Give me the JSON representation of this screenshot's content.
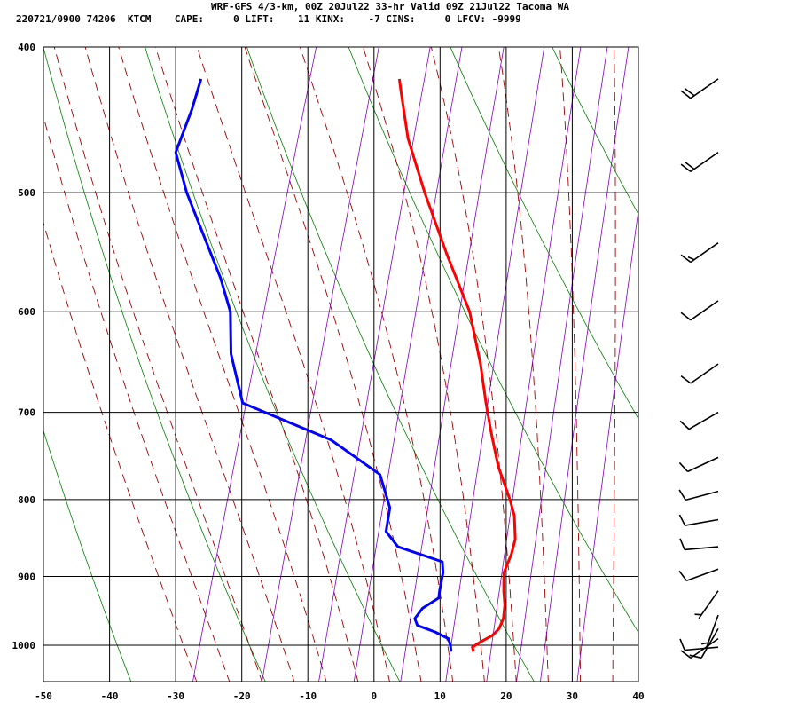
{
  "header": {
    "title": "WRF-GFS 4/3-km, 00Z 20Jul22 33-hr Valid 09Z 21Jul22 Tacoma WA",
    "station": "220721/0900 74206  KTCM",
    "stats": [
      {
        "label": "CAPE:",
        "value": "0"
      },
      {
        "label": "LIFT:",
        "value": "11"
      },
      {
        "label": "KINX:",
        "value": "-7"
      },
      {
        "label": "CINS:",
        "value": "0"
      },
      {
        "label": "LFCV:",
        "value": "-9999"
      }
    ]
  },
  "colors": {
    "temperature": "#ff0000",
    "dewpoint": "#0000ff",
    "dry_adiabat": "#008000",
    "moist_adiabat": "#a00000",
    "mixing_ratio": "#8000c0",
    "grid": "#000000"
  },
  "chart_data": {
    "type": "line",
    "subtype": "skew-T log-P sounding",
    "x_axis": {
      "ticks": [
        "-50",
        "-40",
        "-30",
        "-20",
        "-10",
        "0",
        "10",
        "20",
        "30",
        "40"
      ],
      "range": [
        -50,
        40
      ]
    },
    "y_axis": {
      "ticks": [
        "400",
        "500",
        "600",
        "700",
        "800",
        "900",
        "1000"
      ],
      "range": [
        1040,
        400
      ],
      "scale": "log"
    },
    "grid": true,
    "series": [
      {
        "key": "temperature",
        "points": [
          [
            1010,
            14.2
          ],
          [
            1003,
            13.8
          ],
          [
            995,
            14.8
          ],
          [
            985,
            16.3
          ],
          [
            975,
            17.0
          ],
          [
            960,
            17.2
          ],
          [
            940,
            16.8
          ],
          [
            920,
            16.0
          ],
          [
            895,
            15.2
          ],
          [
            870,
            15.5
          ],
          [
            850,
            15.4
          ],
          [
            820,
            14.2
          ],
          [
            800,
            12.8
          ],
          [
            760,
            9.5
          ],
          [
            720,
            6.8
          ],
          [
            690,
            4.8
          ],
          [
            650,
            2.2
          ],
          [
            600,
            -1.8
          ],
          [
            550,
            -7.8
          ],
          [
            500,
            -14.0
          ],
          [
            460,
            -19.0
          ],
          [
            430,
            -22.0
          ],
          [
            420,
            -23.0
          ]
        ]
      },
      {
        "key": "dewpoint",
        "points": [
          [
            1010,
            10.8
          ],
          [
            1000,
            10.4
          ],
          [
            990,
            9.8
          ],
          [
            980,
            7.5
          ],
          [
            970,
            4.5
          ],
          [
            960,
            3.8
          ],
          [
            945,
            4.5
          ],
          [
            930,
            6.5
          ],
          [
            920,
            6.3
          ],
          [
            895,
            6.0
          ],
          [
            880,
            5.4
          ],
          [
            860,
            -2.0
          ],
          [
            840,
            -4.5
          ],
          [
            810,
            -5.0
          ],
          [
            770,
            -8.0
          ],
          [
            730,
            -17.0
          ],
          [
            690,
            -32.0
          ],
          [
            640,
            -36.0
          ],
          [
            600,
            -38.0
          ],
          [
            570,
            -41.0
          ],
          [
            500,
            -50.0
          ],
          [
            470,
            -53.5
          ],
          [
            440,
            -53.0
          ],
          [
            420,
            -53.0
          ]
        ]
      }
    ],
    "wind_barbs": [
      {
        "p": 420,
        "dir": 235,
        "spd": 20
      },
      {
        "p": 470,
        "dir": 235,
        "spd": 20
      },
      {
        "p": 540,
        "dir": 235,
        "spd": 15
      },
      {
        "p": 590,
        "dir": 235,
        "spd": 10
      },
      {
        "p": 650,
        "dir": 235,
        "spd": 10
      },
      {
        "p": 700,
        "dir": 240,
        "spd": 10
      },
      {
        "p": 750,
        "dir": 245,
        "spd": 10
      },
      {
        "p": 790,
        "dir": 255,
        "spd": 10
      },
      {
        "p": 825,
        "dir": 260,
        "spd": 10
      },
      {
        "p": 860,
        "dir": 265,
        "spd": 10
      },
      {
        "p": 890,
        "dir": 250,
        "spd": 10
      },
      {
        "p": 920,
        "dir": 215,
        "spd": 5
      },
      {
        "p": 955,
        "dir": 200,
        "spd": 5
      },
      {
        "p": 975,
        "dir": 210,
        "spd": 10
      },
      {
        "p": 990,
        "dir": 235,
        "spd": 10
      },
      {
        "p": 1003,
        "dir": 265,
        "spd": 10
      }
    ]
  }
}
